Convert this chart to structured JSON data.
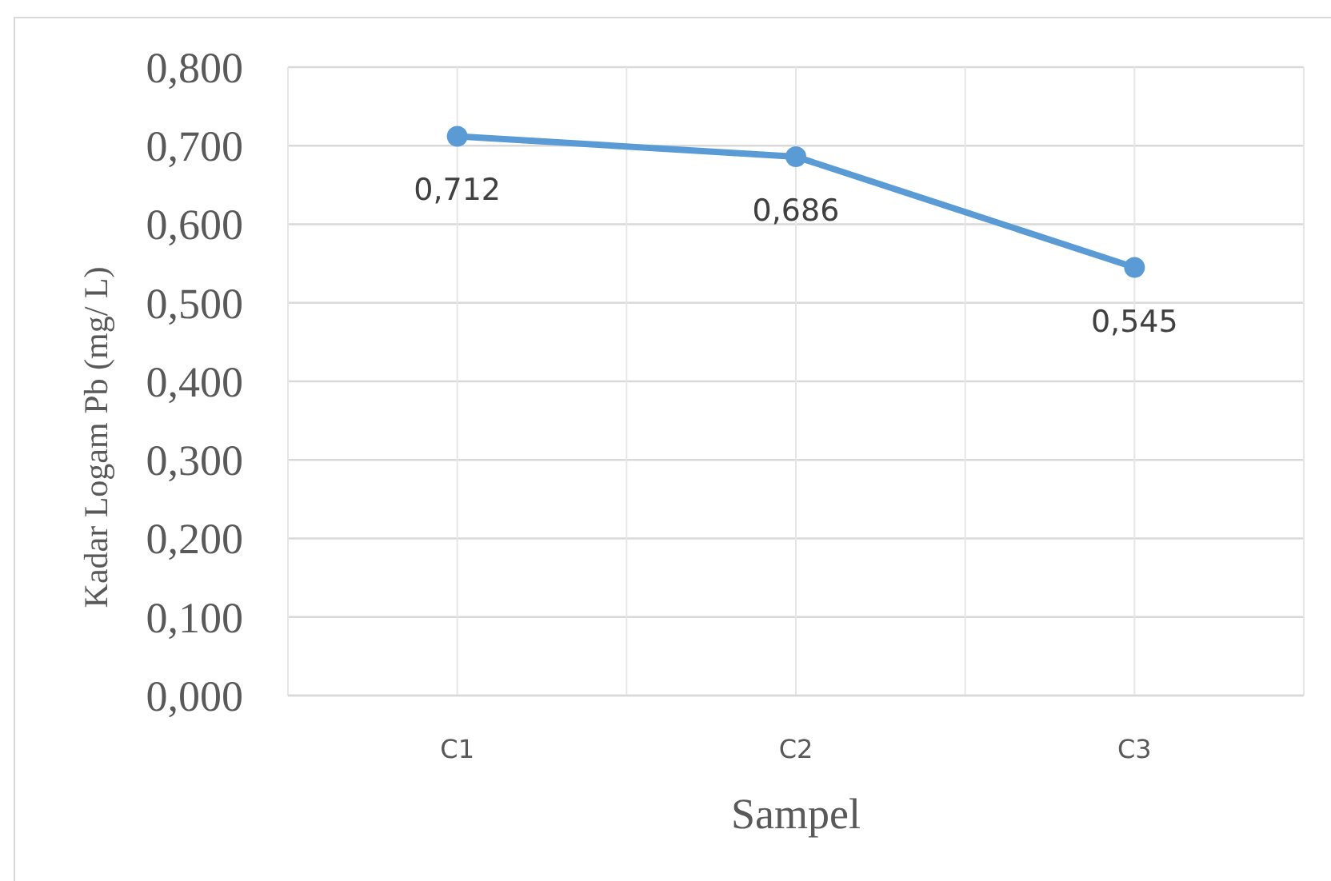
{
  "chart_data": {
    "type": "line",
    "xlabel": "Sampel",
    "ylabel": "Kadar Logam Pb (mg/ L)",
    "categories": [
      "C1",
      "C2",
      "C3"
    ],
    "series": [
      {
        "color": "#5b9bd5",
        "values": [
          0.712,
          0.686,
          0.545
        ],
        "value_labels": [
          "0,712",
          "0,686",
          "0,545"
        ]
      }
    ],
    "ylim": [
      0,
      0.8
    ],
    "yticks": [
      {
        "value": 0,
        "label": "0,000"
      },
      {
        "value": 0.1,
        "label": "0,100"
      },
      {
        "value": 0.2,
        "label": "0,200"
      },
      {
        "value": 0.3,
        "label": "0,300"
      },
      {
        "value": 0.4,
        "label": "0,400"
      },
      {
        "value": 0.5,
        "label": "0,500"
      },
      {
        "value": 0.6,
        "label": "0,600"
      },
      {
        "value": 0.7,
        "label": "0,700"
      },
      {
        "value": 0.8,
        "label": "0,800"
      }
    ],
    "grid": true,
    "marker": "circle",
    "line_style": "solid"
  }
}
